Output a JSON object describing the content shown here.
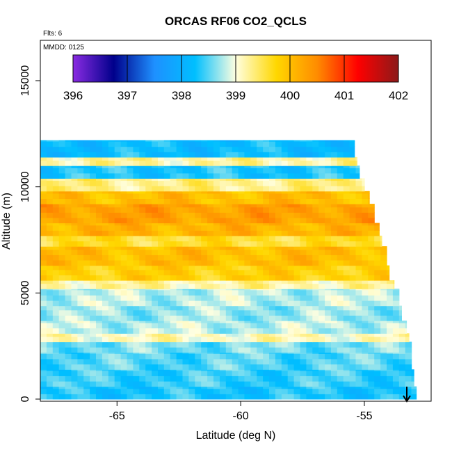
{
  "chart_data": {
    "type": "heatmap",
    "title": "ORCAS RF06 CO2_QCLS",
    "annotations": {
      "flights": "Flts: 6",
      "date": "MMDD: 0125"
    },
    "xlabel": "Latitude (deg N)",
    "ylabel": "Altitude (m)",
    "xlim": [
      -68.1,
      -52.3
    ],
    "ylim": [
      -100,
      16900
    ],
    "xticks": [
      -65,
      -60,
      -55
    ],
    "xtick_labels": [
      "-65",
      "-60",
      "-55"
    ],
    "yticks": [
      0,
      5000,
      10000,
      15000
    ],
    "ytick_labels": [
      "0",
      "5000",
      "10000",
      "15000"
    ],
    "colorbar": {
      "range": [
        396,
        402
      ],
      "ticks": [
        396,
        397,
        398,
        399,
        400,
        401,
        402
      ],
      "tick_labels": [
        "396",
        "397",
        "398",
        "399",
        "400",
        "401",
        "402"
      ],
      "colors": [
        "#8a2be2",
        "#00008b",
        "#1e90ff",
        "#00bfff",
        "#ffffe0",
        "#ffd700",
        "#ff8c00",
        "#ff0000",
        "#8b1a1a"
      ]
    },
    "grid": false,
    "cell": {
      "lat_step": 0.25,
      "alt_step": 250
    },
    "layers": [
      {
        "alt": [
          0,
          600
        ],
        "lat_max": -52.9,
        "value": 398.3
      },
      {
        "alt": [
          600,
          1400
        ],
        "lat_max": -53.0,
        "value": 398.4
      },
      {
        "alt": [
          1400,
          2200
        ],
        "lat_max": -53.1,
        "value": 398.5
      },
      {
        "alt": [
          2200,
          2700
        ],
        "lat_max": -53.1,
        "value": 398.6
      },
      {
        "alt": [
          2700,
          3100
        ],
        "lat_max": -53.2,
        "value": 399.1
      },
      {
        "alt": [
          3100,
          3700
        ],
        "lat_max": -53.3,
        "value": 398.8
      },
      {
        "alt": [
          3700,
          4400
        ],
        "lat_max": -53.5,
        "value": 398.7
      },
      {
        "alt": [
          4400,
          5200
        ],
        "lat_max": -53.6,
        "value": 398.8
      },
      {
        "alt": [
          5200,
          5600
        ],
        "lat_max": -53.8,
        "value": 399.2
      },
      {
        "alt": [
          5600,
          6300
        ],
        "lat_max": -54.0,
        "value": 399.8
      },
      {
        "alt": [
          6300,
          7200
        ],
        "lat_max": -54.1,
        "value": 400.0
      },
      {
        "alt": [
          7200,
          7700
        ],
        "lat_max": -54.3,
        "value": 399.6
      },
      {
        "alt": [
          7700,
          8300
        ],
        "lat_max": -54.4,
        "value": 400.1
      },
      {
        "alt": [
          8300,
          9200
        ],
        "lat_max": -54.6,
        "value": 400.3
      },
      {
        "alt": [
          9200,
          9800
        ],
        "lat_max": -54.8,
        "value": 400.0
      },
      {
        "alt": [
          9800,
          10400
        ],
        "lat_max": -55.0,
        "value": 399.3
      },
      {
        "alt": [
          10400,
          11000
        ],
        "lat_max": -55.2,
        "value": 398.3
      },
      {
        "alt": [
          11000,
          11400
        ],
        "lat_max": -55.3,
        "value": 399.2
      },
      {
        "alt": [
          11400,
          12200
        ],
        "lat_max": -55.4,
        "value": 398.2
      }
    ]
  }
}
